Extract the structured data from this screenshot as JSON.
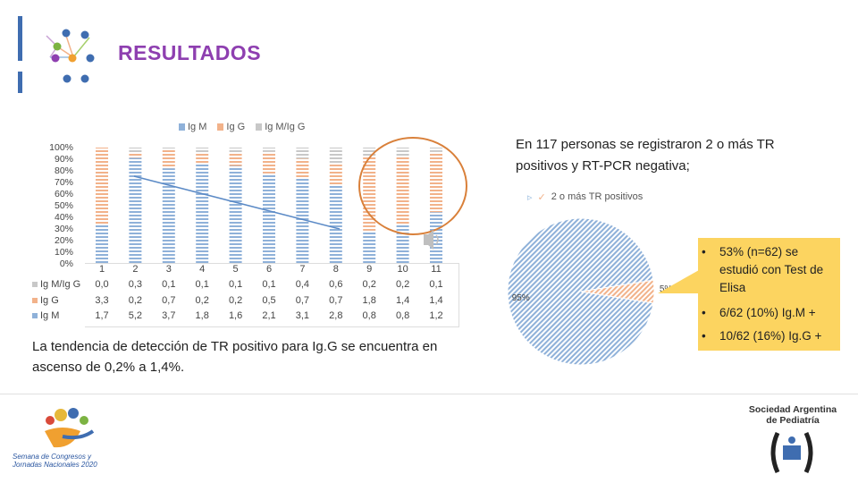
{
  "header": {
    "title": "RESULTADOS",
    "colors": {
      "accent": "#8e3fb0",
      "bar": "#3f6db0"
    }
  },
  "chart_data": [
    {
      "type": "bar",
      "stacked": true,
      "normalized_percent": true,
      "categories": [
        "1",
        "2",
        "3",
        "4",
        "5",
        "6",
        "7",
        "8",
        "9",
        "10",
        "11"
      ],
      "series": [
        {
          "name": "Ig M",
          "values": [
            1.7,
            5.2,
            3.7,
            1.8,
            1.6,
            2.1,
            3.1,
            2.8,
            0.8,
            0.8,
            1.2
          ],
          "color": "#8fb1d9"
        },
        {
          "name": "Ig G",
          "values": [
            3.3,
            0.2,
            0.7,
            0.2,
            0.2,
            0.5,
            0.7,
            0.7,
            1.8,
            1.4,
            1.4
          ],
          "color": "#f2b28a"
        },
        {
          "name": "Ig M/Ig G",
          "values": [
            0.0,
            0.3,
            0.1,
            0.1,
            0.1,
            0.1,
            0.4,
            0.6,
            0.2,
            0.2,
            0.1
          ],
          "color": "#c8c8c8"
        }
      ],
      "yticks": [
        "0%",
        "10%",
        "20%",
        "30%",
        "40%",
        "50%",
        "60%",
        "70%",
        "80%",
        "90%",
        "100%"
      ],
      "ylim": [
        0,
        100
      ],
      "legend": {
        "position": "top",
        "labels": [
          "Ig M",
          "Ig G",
          "Ig M/Ig G"
        ]
      },
      "table_rows": [
        {
          "label": "Ig M/Ig G",
          "values": [
            "0,0",
            "0,3",
            "0,1",
            "0,1",
            "0,1",
            "0,1",
            "0,4",
            "0,6",
            "0,2",
            "0,2",
            "0,1"
          ]
        },
        {
          "label": "Ig G",
          "values": [
            "3,3",
            "0,2",
            "0,7",
            "0,2",
            "0,2",
            "0,5",
            "0,7",
            "0,7",
            "1,8",
            "1,4",
            "1,4"
          ]
        },
        {
          "label": "Ig M",
          "values": [
            "1,7",
            "5,2",
            "3,7",
            "1,8",
            "1,6",
            "2,1",
            "3,1",
            "2,8",
            "0,8",
            "0,8",
            "1,2"
          ]
        }
      ],
      "annotations": {
        "trend_line": "descending",
        "highlight_circle_categories": [
          "9",
          "10",
          "11"
        ]
      }
    },
    {
      "type": "pie",
      "slices": [
        {
          "label": "95%",
          "value": 95,
          "color": "#8fb1d9"
        },
        {
          "label": "5%",
          "value": 5,
          "color": "#f2b28a"
        }
      ],
      "legend": {
        "position": "top",
        "labels": [
          "2 o más TR positivos"
        ]
      }
    }
  ],
  "text": {
    "right_paragraph": "En 117 personas se registraron 2 o más TR positivos y RT-PCR negativa;",
    "bottom_paragraph": "La tendencia de detección de TR positivo para Ig.G se encuentra en ascenso de 0,2% a 1,4%.",
    "bullets": [
      "53% (n=62) se estudió con Test de Elisa",
      "6/62 (10%) Ig.M +",
      "10/62 (16%) Ig.G +"
    ],
    "bullet_box_color": "#fcd460"
  },
  "footer": {
    "sap_name": "Sociedad Argentina de Pediatría",
    "semana": "Semana de Congresos y Jornadas Nacionales 2020"
  }
}
